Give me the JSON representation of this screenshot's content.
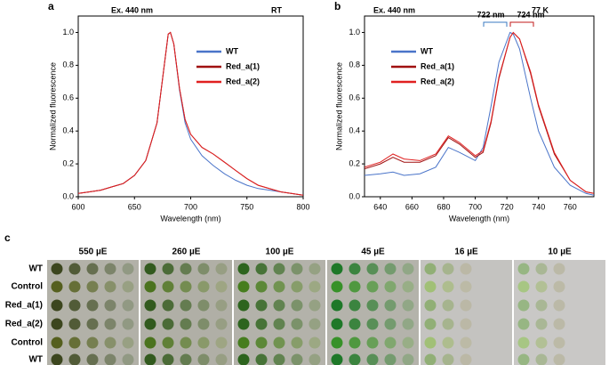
{
  "chart_data": [
    {
      "type": "line",
      "panel_label": "a",
      "annotations": [
        {
          "text": "Ex. 440 nm"
        },
        {
          "text": "RT"
        }
      ],
      "xlabel": "Wavelength (nm)",
      "ylabel": "Normalized fluorescence",
      "x": [
        600,
        610,
        620,
        630,
        640,
        650,
        660,
        670,
        675,
        680,
        682,
        685,
        690,
        695,
        700,
        710,
        720,
        730,
        740,
        750,
        760,
        780,
        800
      ],
      "series": [
        {
          "name": "WT",
          "color": "#4a74c9",
          "values": [
            0.02,
            0.03,
            0.04,
            0.06,
            0.08,
            0.13,
            0.22,
            0.45,
            0.72,
            0.99,
            1.0,
            0.93,
            0.65,
            0.45,
            0.35,
            0.25,
            0.19,
            0.14,
            0.1,
            0.07,
            0.05,
            0.03,
            0.01
          ]
        },
        {
          "name": "Red_a(1)",
          "color": "#a01010",
          "values": [
            0.02,
            0.03,
            0.04,
            0.06,
            0.08,
            0.13,
            0.22,
            0.45,
            0.72,
            0.99,
            1.0,
            0.93,
            0.66,
            0.47,
            0.38,
            0.3,
            0.26,
            0.21,
            0.16,
            0.11,
            0.07,
            0.03,
            0.01
          ]
        },
        {
          "name": "Red_a(2)",
          "color": "#e02020",
          "values": [
            0.02,
            0.03,
            0.04,
            0.06,
            0.08,
            0.13,
            0.22,
            0.45,
            0.72,
            0.99,
            1.0,
            0.93,
            0.66,
            0.47,
            0.38,
            0.3,
            0.26,
            0.21,
            0.16,
            0.11,
            0.07,
            0.03,
            0.01
          ]
        }
      ],
      "xlim": [
        600,
        800
      ],
      "xticks": [
        600,
        650,
        700,
        750,
        800
      ],
      "ylim": [
        0,
        1.1
      ],
      "yticks": [
        {
          "value": 0,
          "label": "0.0"
        },
        0.2,
        0.4,
        0.6,
        0.8,
        {
          "value": 1,
          "label": "1.0"
        }
      ],
      "legend": "upper right"
    },
    {
      "type": "line",
      "panel_label": "b",
      "annotations": [
        {
          "text": "Ex. 440 nm"
        },
        {
          "text": "77 K"
        },
        {
          "text": "722 nm",
          "color": "#3a78c0"
        },
        {
          "text": "724 nm",
          "color": "#c01818"
        }
      ],
      "xlabel": "Wavelength (nm)",
      "ylabel": "Normalized fluorescence",
      "x": [
        630,
        640,
        648,
        655,
        665,
        675,
        683,
        690,
        700,
        705,
        710,
        715,
        722,
        724,
        728,
        735,
        740,
        750,
        760,
        770,
        775
      ],
      "series": [
        {
          "name": "WT",
          "color": "#4a74c9",
          "values": [
            0.13,
            0.14,
            0.15,
            0.13,
            0.14,
            0.18,
            0.3,
            0.27,
            0.22,
            0.3,
            0.55,
            0.82,
            1.0,
            0.99,
            0.9,
            0.6,
            0.4,
            0.18,
            0.07,
            0.02,
            0.01
          ]
        },
        {
          "name": "Red_a(1)",
          "color": "#a01010",
          "values": [
            0.17,
            0.2,
            0.24,
            0.21,
            0.21,
            0.25,
            0.36,
            0.32,
            0.24,
            0.27,
            0.45,
            0.72,
            0.97,
            1.0,
            0.96,
            0.75,
            0.55,
            0.26,
            0.1,
            0.03,
            0.02
          ]
        },
        {
          "name": "Red_a(2)",
          "color": "#e02020",
          "values": [
            0.18,
            0.21,
            0.26,
            0.23,
            0.22,
            0.26,
            0.37,
            0.33,
            0.25,
            0.28,
            0.46,
            0.73,
            0.97,
            1.0,
            0.96,
            0.76,
            0.56,
            0.27,
            0.1,
            0.03,
            0.02
          ]
        }
      ],
      "xlim": [
        630,
        775
      ],
      "xticks": [
        640,
        660,
        680,
        700,
        720,
        740,
        760
      ],
      "ylim": [
        0,
        1.1
      ],
      "yticks": [
        {
          "value": 0,
          "label": "0.0"
        },
        0.2,
        0.4,
        0.6,
        0.8,
        {
          "value": 1,
          "label": "1.0"
        }
      ],
      "legend": "upper left"
    }
  ],
  "photo_panel": {
    "panel_label": "c",
    "columns": [
      "550 µE",
      "260 µE",
      "100 µE",
      "45 µE",
      "16 µE",
      "10 µE"
    ],
    "rows": [
      {
        "text": "WT",
        "color": "#3a62b8"
      },
      {
        "text": "Control",
        "color": "#000000"
      },
      {
        "text": "Red_a(1)",
        "color": "#c01818"
      },
      {
        "text": "Red_a(2)",
        "color": "#c01818"
      },
      {
        "text": "Control",
        "color": "#000000"
      },
      {
        "text": "WT",
        "color": "#3a62b8"
      }
    ]
  }
}
